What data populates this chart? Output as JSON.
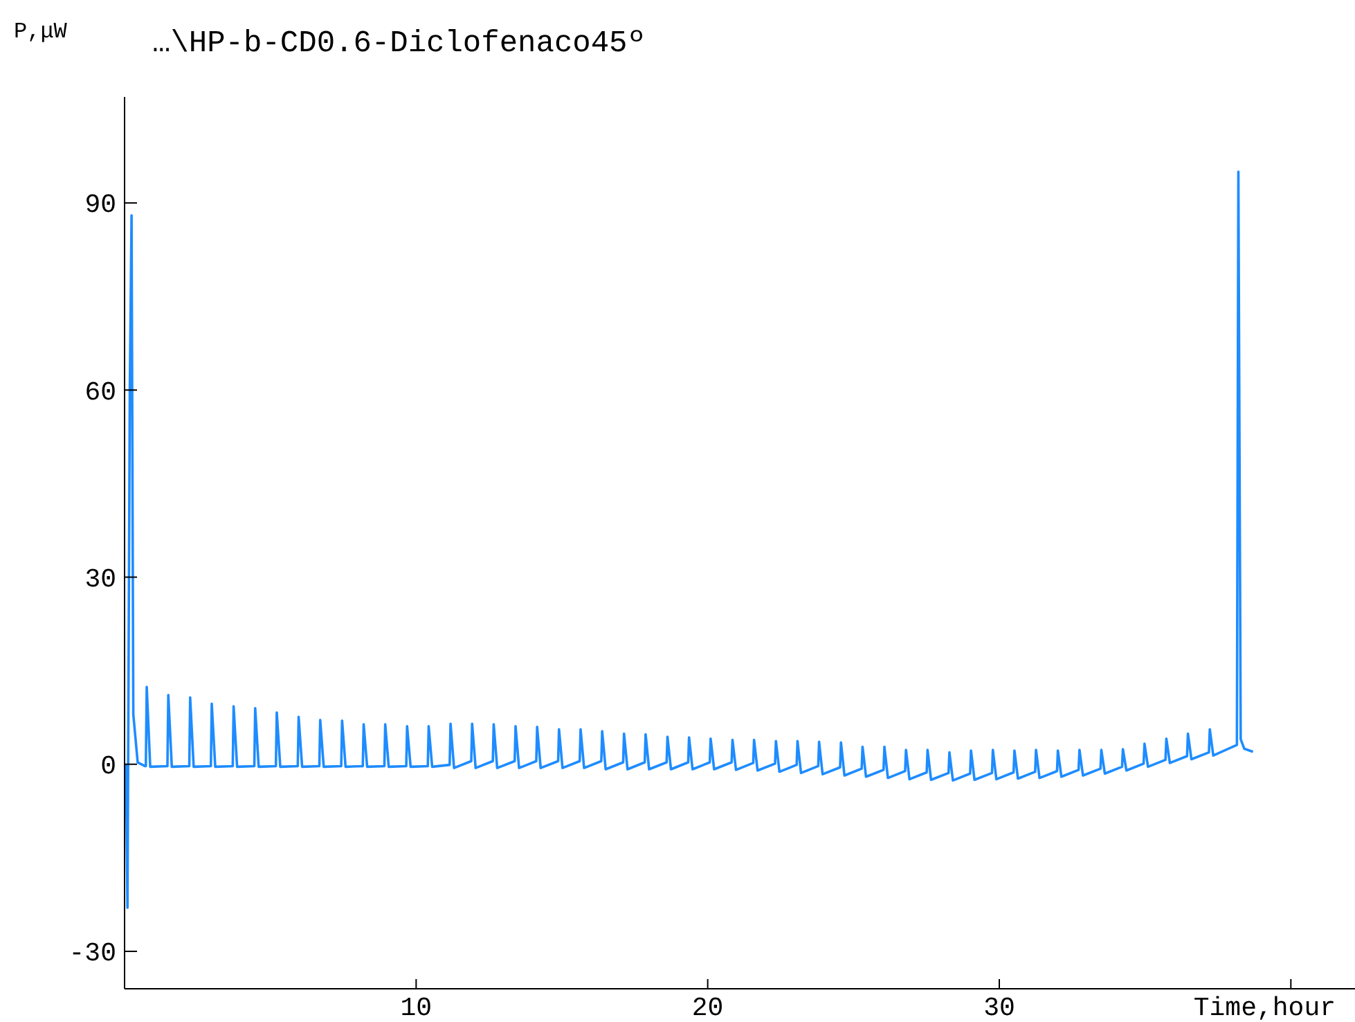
{
  "chart_data": {
    "type": "line",
    "title": "…\\HP-b-CD0.6-Diclofenaco45º",
    "xlabel": "Time,hour",
    "ylabel": "P,μW",
    "xlim": [
      0,
      42.2
    ],
    "ylim": [
      -36,
      107
    ],
    "xticks": [
      10,
      20,
      30,
      {
        "value": 40,
        "label": null
      }
    ],
    "yticks": [
      -30,
      0,
      30,
      60,
      90
    ],
    "grid": false,
    "marker": "none",
    "line_style": "solid",
    "series": [
      {
        "color": "#1e8cff",
        "x": [
          0.05,
          0.1,
          0.18,
          0.24,
          0.3,
          0.45,
          0.7,
          0.73,
          0.76,
          0.88,
          1.47,
          1.5,
          1.62,
          2.22,
          2.25,
          2.37,
          2.96,
          2.99,
          3.11,
          3.71,
          3.74,
          3.86,
          4.45,
          4.48,
          4.6,
          5.19,
          5.22,
          5.34,
          5.94,
          5.97,
          6.09,
          6.68,
          6.71,
          6.83,
          7.43,
          7.46,
          7.58,
          8.17,
          8.2,
          8.32,
          8.91,
          8.94,
          9.06,
          9.66,
          9.69,
          9.81,
          10.4,
          10.43,
          10.55,
          11.15,
          11.18,
          11.3,
          11.89,
          11.92,
          12.04,
          12.63,
          12.66,
          12.78,
          13.38,
          13.41,
          13.53,
          14.12,
          14.15,
          14.27,
          14.87,
          14.9,
          15.02,
          15.61,
          15.64,
          15.76,
          16.35,
          16.38,
          16.5,
          17.1,
          17.13,
          17.25,
          17.84,
          17.87,
          17.99,
          18.59,
          18.62,
          18.74,
          19.33,
          19.36,
          19.48,
          20.07,
          20.1,
          20.22,
          20.82,
          20.85,
          20.97,
          21.56,
          21.59,
          21.71,
          22.31,
          22.34,
          22.46,
          23.05,
          23.08,
          23.2,
          23.79,
          23.82,
          23.94,
          24.54,
          24.57,
          24.69,
          25.28,
          25.31,
          25.43,
          26.03,
          26.06,
          26.18,
          26.77,
          26.8,
          26.92,
          27.51,
          27.54,
          27.66,
          28.26,
          28.29,
          28.41,
          29,
          29.03,
          29.15,
          29.75,
          29.78,
          29.9,
          30.49,
          30.52,
          30.64,
          31.23,
          31.26,
          31.38,
          31.98,
          32.01,
          32.13,
          32.72,
          32.75,
          32.87,
          33.47,
          33.5,
          33.62,
          34.21,
          34.24,
          34.36,
          34.95,
          34.98,
          35.1,
          35.7,
          35.73,
          35.85,
          36.44,
          36.47,
          36.59,
          37.19,
          37.22,
          37.34,
          38.15,
          38.2,
          38.28,
          38.4,
          38.7
        ],
        "values": [
          0,
          -23,
          60,
          88,
          8,
          0.3,
          -0.3,
          -0.3,
          12.4,
          -0.4,
          -0.3,
          11.1,
          -0.4,
          -0.3,
          10.7,
          -0.4,
          -0.3,
          9.7,
          -0.4,
          -0.3,
          9.3,
          -0.4,
          -0.3,
          9.0,
          -0.4,
          -0.3,
          8.3,
          -0.4,
          -0.3,
          7.6,
          -0.4,
          -0.3,
          7.1,
          -0.4,
          -0.3,
          7.0,
          -0.4,
          -0.3,
          6.4,
          -0.4,
          -0.3,
          6.4,
          -0.4,
          -0.3,
          6.1,
          -0.4,
          -0.3,
          6.1,
          -0.4,
          -0.1,
          6.5,
          -0.6,
          0.5,
          6.5,
          -0.6,
          0.5,
          6.4,
          -0.6,
          0.5,
          6.1,
          -0.6,
          0.5,
          6.0,
          -0.6,
          0.5,
          5.6,
          -0.6,
          0.5,
          5.6,
          -0.6,
          0.5,
          5.3,
          -0.8,
          0.3,
          4.9,
          -0.8,
          0.3,
          4.8,
          -0.8,
          0.3,
          4.4,
          -0.8,
          0.3,
          4.3,
          -0.8,
          0.3,
          4.1,
          -0.8,
          0.3,
          3.9,
          -0.9,
          0.2,
          3.9,
          -1.0,
          0.1,
          3.7,
          -1.2,
          -0.1,
          3.7,
          -1.4,
          -0.3,
          3.6,
          -1.6,
          -0.5,
          3.5,
          -1.8,
          -0.7,
          2.8,
          -2.0,
          -0.9,
          2.8,
          -2.2,
          -1.1,
          2.3,
          -2.4,
          -1.3,
          2.3,
          -2.5,
          -1.4,
          1.9,
          -2.6,
          -1.5,
          2.2,
          -2.5,
          -1.4,
          2.3,
          -2.4,
          -1.3,
          2.2,
          -2.3,
          -1.2,
          2.3,
          -2.2,
          -1.1,
          2.2,
          -2.0,
          -0.9,
          2.3,
          -1.8,
          -0.7,
          2.3,
          -1.5,
          -0.4,
          2.4,
          -1.0,
          0.1,
          3.3,
          -0.4,
          0.7,
          4.1,
          0.2,
          1.3,
          4.9,
          0.8,
          1.9,
          5.6,
          1.4,
          3.1,
          95,
          4,
          2.5,
          2.0
        ]
      }
    ]
  }
}
